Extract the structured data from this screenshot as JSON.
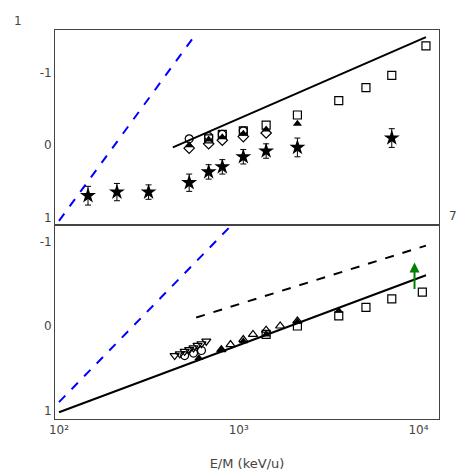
{
  "chart_data": [
    {
      "type": "line",
      "log": "x",
      "grid": false,
      "tick_labels": "y",
      "xlim": [
        95,
        13000
      ],
      "xticks": [
        {
          "value": 100,
          "label": "10²"
        },
        {
          "value": 1000,
          "label": "10³"
        },
        {
          "value": 10000,
          "label": "10⁴"
        }
      ],
      "ylim": [
        1.1,
        -1.6
      ],
      "yticks": [
        1,
        0,
        -1
      ],
      "annotations": [
        {
          "text": "1"
        }
      ],
      "series": [
        {
          "type": "line",
          "color": "blue",
          "line_style": "dashed",
          "x": [
            100,
            580
          ],
          "values": [
            1.05,
            -1.55
          ]
        },
        {
          "type": "line",
          "color": "black",
          "line_style": "solid",
          "x": [
            430,
            11000
          ],
          "values": [
            0.03,
            -1.5
          ]
        },
        {
          "type": "scatter",
          "color": "black",
          "marker": "star",
          "x": [
            145,
            210,
            315,
            530,
            680,
            810,
            1060,
            1420,
            2120,
            7100
          ],
          "values": [
            0.7,
            0.65,
            0.65,
            0.52,
            0.37,
            0.3,
            0.16,
            0.08,
            0.03,
            -0.1
          ],
          "yerr": [
            0.13,
            0.12,
            0.1,
            0.12,
            0.1,
            0.1,
            0.1,
            0.1,
            0.13,
            0.13
          ]
        },
        {
          "type": "scatter",
          "color": "black",
          "marker": "triangle-up",
          "x": [
            530,
            680,
            810,
            1060,
            1420,
            2120
          ],
          "values": [
            0.0,
            -0.08,
            -0.11,
            -0.16,
            -0.22,
            -0.3
          ]
        },
        {
          "type": "scatter",
          "color": "black",
          "marker": "diamond-open",
          "x": [
            530,
            680,
            810,
            1060,
            1420
          ],
          "values": [
            0.04,
            -0.02,
            -0.07,
            -0.12,
            -0.17
          ]
        },
        {
          "type": "scatter",
          "color": "black",
          "marker": "circle-open",
          "x": [
            530,
            680,
            810,
            1060
          ],
          "values": [
            -0.09,
            -0.12,
            -0.15,
            -0.2
          ]
        },
        {
          "type": "scatter",
          "color": "black",
          "marker": "square-open",
          "x": [
            680,
            810,
            1060,
            1420,
            2120,
            3600,
            5100,
            7100,
            11000
          ],
          "values": [
            -0.09,
            -0.15,
            -0.2,
            -0.28,
            -0.42,
            -0.62,
            -0.8,
            -0.97,
            -1.38
          ]
        }
      ]
    },
    {
      "type": "line",
      "log": "x",
      "grid": false,
      "xlabel": "E/M (keV/u)",
      "xlim": [
        95,
        13000
      ],
      "xticks": [
        {
          "value": 100,
          "label": "10²"
        },
        {
          "value": 1000,
          "label": "10³"
        },
        {
          "value": 10000,
          "label": "10⁴"
        }
      ],
      "ylim": [
        1.1,
        -1.2
      ],
      "yticks": [
        1,
        0,
        -1
      ],
      "annotations": [
        {
          "text": "7"
        },
        {
          "x": 9500,
          "y": -0.75,
          "color": "green"
        }
      ],
      "series": [
        {
          "type": "line",
          "color": "blue",
          "line_style": "dashed",
          "x": [
            100,
            900
          ],
          "values": [
            0.9,
            -1.18
          ]
        },
        {
          "type": "line",
          "color": "black",
          "line_style": "solid",
          "x": [
            100,
            11000
          ],
          "values": [
            1.02,
            -0.6
          ]
        },
        {
          "type": "line",
          "color": "black",
          "line_style": "dashed",
          "x": [
            580,
            11000
          ],
          "values": [
            -0.1,
            -0.95
          ]
        },
        {
          "type": "scatter",
          "color": "black",
          "marker": "triangle-up",
          "x": [
            600,
            800,
            1060,
            1420,
            2120,
            3600
          ],
          "values": [
            0.38,
            0.28,
            0.18,
            0.1,
            -0.05,
            -0.18
          ]
        },
        {
          "type": "scatter",
          "color": "black",
          "marker": "triangle-down-open",
          "x": [
            440,
            470,
            500,
            530,
            560,
            590,
            620,
            660
          ],
          "values": [
            0.35,
            0.33,
            0.3,
            0.28,
            0.26,
            0.23,
            0.21,
            0.18
          ]
        },
        {
          "type": "scatter",
          "color": "black",
          "marker": "triangle-up-open",
          "x": [
            800,
            900,
            1060,
            1200,
            1420,
            1700,
            2120
          ],
          "values": [
            0.28,
            0.22,
            0.16,
            0.1,
            0.05,
            0.0,
            -0.06
          ]
        },
        {
          "type": "scatter",
          "color": "black",
          "marker": "circle-open",
          "x": [
            500,
            560,
            620
          ],
          "values": [
            0.35,
            0.32,
            0.29
          ]
        },
        {
          "type": "scatter",
          "color": "black",
          "marker": "square-open",
          "x": [
            1420,
            2120,
            3600,
            5100,
            7100,
            10500
          ],
          "values": [
            0.1,
            0.0,
            -0.12,
            -0.22,
            -0.32,
            -0.4
          ]
        }
      ]
    }
  ]
}
